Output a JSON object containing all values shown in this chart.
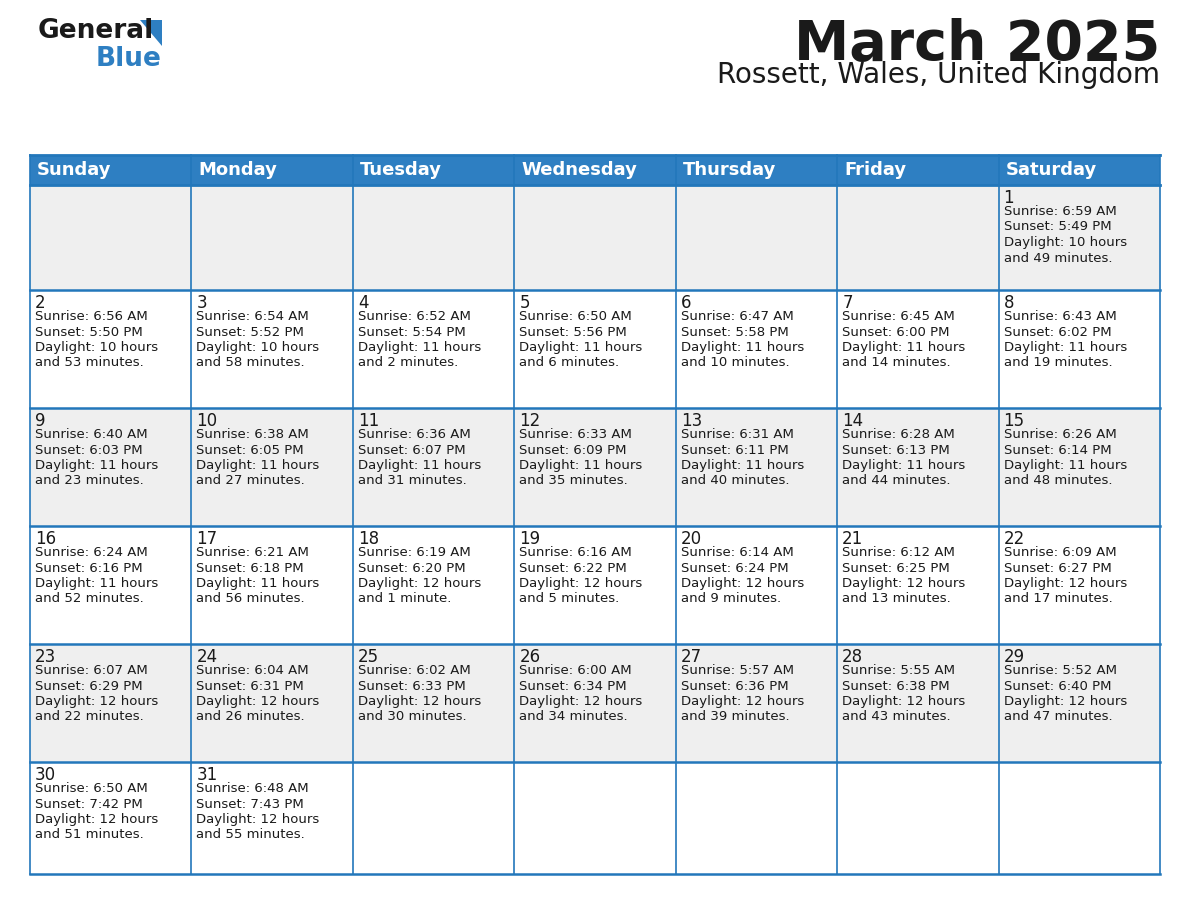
{
  "title": "March 2025",
  "subtitle": "Rossett, Wales, United Kingdom",
  "header_color": "#2e7fc2",
  "header_text_color": "#ffffff",
  "cell_bg_odd": "#efefef",
  "cell_bg_even": "#ffffff",
  "border_color": "#2277bb",
  "text_color": "#1a1a1a",
  "days_of_week": [
    "Sunday",
    "Monday",
    "Tuesday",
    "Wednesday",
    "Thursday",
    "Friday",
    "Saturday"
  ],
  "calendar_data": [
    [
      {
        "day": null,
        "sunrise": null,
        "sunset": null,
        "daylight": null
      },
      {
        "day": null,
        "sunrise": null,
        "sunset": null,
        "daylight": null
      },
      {
        "day": null,
        "sunrise": null,
        "sunset": null,
        "daylight": null
      },
      {
        "day": null,
        "sunrise": null,
        "sunset": null,
        "daylight": null
      },
      {
        "day": null,
        "sunrise": null,
        "sunset": null,
        "daylight": null
      },
      {
        "day": null,
        "sunrise": null,
        "sunset": null,
        "daylight": null
      },
      {
        "day": 1,
        "sunrise": "6:59 AM",
        "sunset": "5:49 PM",
        "daylight": "10 hours\nand 49 minutes."
      }
    ],
    [
      {
        "day": 2,
        "sunrise": "6:56 AM",
        "sunset": "5:50 PM",
        "daylight": "10 hours\nand 53 minutes."
      },
      {
        "day": 3,
        "sunrise": "6:54 AM",
        "sunset": "5:52 PM",
        "daylight": "10 hours\nand 58 minutes."
      },
      {
        "day": 4,
        "sunrise": "6:52 AM",
        "sunset": "5:54 PM",
        "daylight": "11 hours\nand 2 minutes."
      },
      {
        "day": 5,
        "sunrise": "6:50 AM",
        "sunset": "5:56 PM",
        "daylight": "11 hours\nand 6 minutes."
      },
      {
        "day": 6,
        "sunrise": "6:47 AM",
        "sunset": "5:58 PM",
        "daylight": "11 hours\nand 10 minutes."
      },
      {
        "day": 7,
        "sunrise": "6:45 AM",
        "sunset": "6:00 PM",
        "daylight": "11 hours\nand 14 minutes."
      },
      {
        "day": 8,
        "sunrise": "6:43 AM",
        "sunset": "6:02 PM",
        "daylight": "11 hours\nand 19 minutes."
      }
    ],
    [
      {
        "day": 9,
        "sunrise": "6:40 AM",
        "sunset": "6:03 PM",
        "daylight": "11 hours\nand 23 minutes."
      },
      {
        "day": 10,
        "sunrise": "6:38 AM",
        "sunset": "6:05 PM",
        "daylight": "11 hours\nand 27 minutes."
      },
      {
        "day": 11,
        "sunrise": "6:36 AM",
        "sunset": "6:07 PM",
        "daylight": "11 hours\nand 31 minutes."
      },
      {
        "day": 12,
        "sunrise": "6:33 AM",
        "sunset": "6:09 PM",
        "daylight": "11 hours\nand 35 minutes."
      },
      {
        "day": 13,
        "sunrise": "6:31 AM",
        "sunset": "6:11 PM",
        "daylight": "11 hours\nand 40 minutes."
      },
      {
        "day": 14,
        "sunrise": "6:28 AM",
        "sunset": "6:13 PM",
        "daylight": "11 hours\nand 44 minutes."
      },
      {
        "day": 15,
        "sunrise": "6:26 AM",
        "sunset": "6:14 PM",
        "daylight": "11 hours\nand 48 minutes."
      }
    ],
    [
      {
        "day": 16,
        "sunrise": "6:24 AM",
        "sunset": "6:16 PM",
        "daylight": "11 hours\nand 52 minutes."
      },
      {
        "day": 17,
        "sunrise": "6:21 AM",
        "sunset": "6:18 PM",
        "daylight": "11 hours\nand 56 minutes."
      },
      {
        "day": 18,
        "sunrise": "6:19 AM",
        "sunset": "6:20 PM",
        "daylight": "12 hours\nand 1 minute."
      },
      {
        "day": 19,
        "sunrise": "6:16 AM",
        "sunset": "6:22 PM",
        "daylight": "12 hours\nand 5 minutes."
      },
      {
        "day": 20,
        "sunrise": "6:14 AM",
        "sunset": "6:24 PM",
        "daylight": "12 hours\nand 9 minutes."
      },
      {
        "day": 21,
        "sunrise": "6:12 AM",
        "sunset": "6:25 PM",
        "daylight": "12 hours\nand 13 minutes."
      },
      {
        "day": 22,
        "sunrise": "6:09 AM",
        "sunset": "6:27 PM",
        "daylight": "12 hours\nand 17 minutes."
      }
    ],
    [
      {
        "day": 23,
        "sunrise": "6:07 AM",
        "sunset": "6:29 PM",
        "daylight": "12 hours\nand 22 minutes."
      },
      {
        "day": 24,
        "sunrise": "6:04 AM",
        "sunset": "6:31 PM",
        "daylight": "12 hours\nand 26 minutes."
      },
      {
        "day": 25,
        "sunrise": "6:02 AM",
        "sunset": "6:33 PM",
        "daylight": "12 hours\nand 30 minutes."
      },
      {
        "day": 26,
        "sunrise": "6:00 AM",
        "sunset": "6:34 PM",
        "daylight": "12 hours\nand 34 minutes."
      },
      {
        "day": 27,
        "sunrise": "5:57 AM",
        "sunset": "6:36 PM",
        "daylight": "12 hours\nand 39 minutes."
      },
      {
        "day": 28,
        "sunrise": "5:55 AM",
        "sunset": "6:38 PM",
        "daylight": "12 hours\nand 43 minutes."
      },
      {
        "day": 29,
        "sunrise": "5:52 AM",
        "sunset": "6:40 PM",
        "daylight": "12 hours\nand 47 minutes."
      }
    ],
    [
      {
        "day": 30,
        "sunrise": "6:50 AM",
        "sunset": "7:42 PM",
        "daylight": "12 hours\nand 51 minutes."
      },
      {
        "day": 31,
        "sunrise": "6:48 AM",
        "sunset": "7:43 PM",
        "daylight": "12 hours\nand 55 minutes."
      },
      {
        "day": null,
        "sunrise": null,
        "sunset": null,
        "daylight": null
      },
      {
        "day": null,
        "sunrise": null,
        "sunset": null,
        "daylight": null
      },
      {
        "day": null,
        "sunrise": null,
        "sunset": null,
        "daylight": null
      },
      {
        "day": null,
        "sunrise": null,
        "sunset": null,
        "daylight": null
      },
      {
        "day": null,
        "sunrise": null,
        "sunset": null,
        "daylight": null
      }
    ]
  ],
  "logo_general_color": "#1a1a1a",
  "logo_blue_color": "#2e7fc2",
  "logo_triangle_color": "#2e7fc2",
  "title_fontsize": 40,
  "subtitle_fontsize": 20,
  "header_fontsize": 13,
  "day_num_fontsize": 12,
  "cell_text_fontsize": 9.5
}
